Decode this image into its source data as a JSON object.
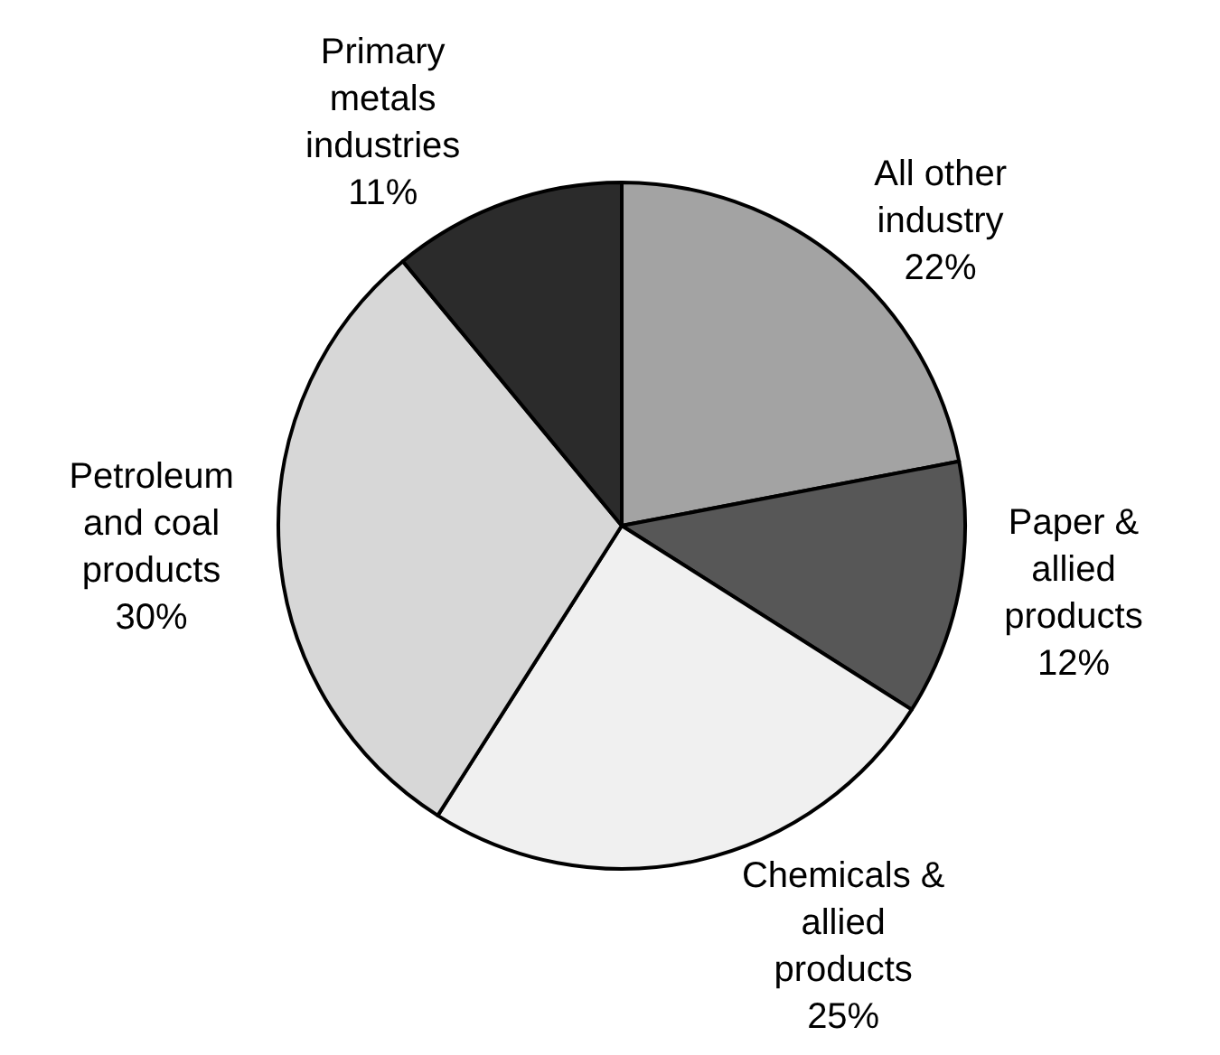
{
  "chart_data": {
    "type": "pie",
    "categories": [
      "All other industry",
      "Paper & allied products",
      "Chemicals & allied products",
      "Petroleum and coal products",
      "Primary metals industries"
    ],
    "values": [
      22,
      12,
      25,
      30,
      11
    ],
    "value_labels": [
      "22%",
      "12%",
      "25%",
      "30%",
      "11%"
    ],
    "colors": [
      "#a3a3a3",
      "#575757",
      "#f0f0f0",
      "#d7d7d7",
      "#2b2b2b"
    ],
    "legend": false
  }
}
